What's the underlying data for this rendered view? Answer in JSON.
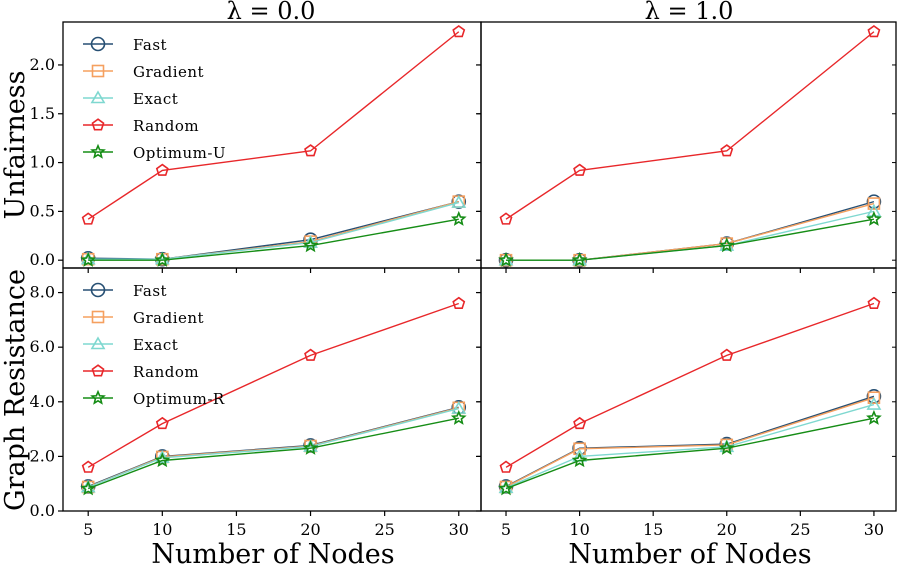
{
  "colors": {
    "Fast": "#264f73",
    "Gradient": "#f5a05f",
    "Exact": "#7fd8d0",
    "Random": "#e8272a",
    "Optimum": "#168d16"
  },
  "chart_data": [
    {
      "type": "line",
      "title": "λ = 0.0",
      "xlabel": "",
      "ylabel": "Unfairness",
      "x": [
        5,
        10,
        20,
        30
      ],
      "xlim": [
        3.3,
        31.5
      ],
      "ylim": [
        -0.08,
        2.44
      ],
      "xticks": [
        5,
        10,
        15,
        20,
        25,
        30
      ],
      "yticks": [
        0.0,
        0.5,
        1.0,
        1.5,
        2.0
      ],
      "ytick_labels": [
        "0.0",
        "0.5",
        "1.0",
        "1.5",
        "2.0"
      ],
      "legend": [
        "Fast",
        "Gradient",
        "Exact",
        "Random",
        "Optimum-U"
      ],
      "series": [
        {
          "name": "Fast",
          "marker": "circle",
          "values": [
            0.02,
            0.01,
            0.21,
            0.6
          ]
        },
        {
          "name": "Gradient",
          "marker": "square",
          "values": [
            0.01,
            0.01,
            0.19,
            0.6
          ]
        },
        {
          "name": "Exact",
          "marker": "triangle",
          "values": [
            0.01,
            0.01,
            0.18,
            0.59
          ]
        },
        {
          "name": "Random",
          "marker": "pentagon",
          "values": [
            0.42,
            0.92,
            1.12,
            2.34
          ]
        },
        {
          "name": "Optimum-U",
          "marker": "star",
          "values": [
            0.0,
            0.0,
            0.15,
            0.42
          ]
        }
      ]
    },
    {
      "type": "line",
      "title": "λ = 1.0",
      "xlabel": "",
      "ylabel": "",
      "x": [
        5,
        10,
        20,
        30
      ],
      "xlim": [
        3.3,
        31.5
      ],
      "ylim": [
        -0.08,
        2.44
      ],
      "xticks": [
        5,
        10,
        15,
        20,
        25,
        30
      ],
      "yticks": [
        0.0,
        0.5,
        1.0,
        1.5,
        2.0
      ],
      "legend": [],
      "series": [
        {
          "name": "Fast",
          "marker": "circle",
          "values": [
            0.0,
            0.0,
            0.17,
            0.6
          ]
        },
        {
          "name": "Gradient",
          "marker": "square",
          "values": [
            0.0,
            0.0,
            0.17,
            0.58
          ]
        },
        {
          "name": "Exact",
          "marker": "triangle",
          "values": [
            0.0,
            0.0,
            0.15,
            0.5
          ]
        },
        {
          "name": "Random",
          "marker": "pentagon",
          "values": [
            0.42,
            0.92,
            1.12,
            2.34
          ]
        },
        {
          "name": "Optimum-U",
          "marker": "star",
          "values": [
            0.0,
            0.0,
            0.15,
            0.42
          ]
        }
      ]
    },
    {
      "type": "line",
      "title": "",
      "xlabel": "Number of Nodes",
      "ylabel": "Graph Resistance",
      "x": [
        5,
        10,
        20,
        30
      ],
      "xlim": [
        3.3,
        31.5
      ],
      "ylim": [
        0.0,
        8.9
      ],
      "xticks": [
        5,
        10,
        15,
        20,
        25,
        30
      ],
      "xtick_labels": [
        "5",
        "10",
        "15",
        "20",
        "25",
        "30"
      ],
      "yticks": [
        0.0,
        2.0,
        4.0,
        6.0,
        8.0
      ],
      "ytick_labels": [
        "0.0",
        "2.0",
        "4.0",
        "6.0",
        "8.0"
      ],
      "legend": [
        "Fast",
        "Gradient",
        "Exact",
        "Random",
        "Optimum-R"
      ],
      "series": [
        {
          "name": "Fast",
          "marker": "circle",
          "values": [
            0.9,
            2.0,
            2.4,
            3.8
          ]
        },
        {
          "name": "Gradient",
          "marker": "square",
          "values": [
            0.88,
            1.98,
            2.38,
            3.78
          ]
        },
        {
          "name": "Exact",
          "marker": "triangle",
          "values": [
            0.87,
            1.95,
            2.36,
            3.75
          ]
        },
        {
          "name": "Random",
          "marker": "pentagon",
          "values": [
            1.6,
            3.2,
            5.7,
            7.6
          ]
        },
        {
          "name": "Optimum-R",
          "marker": "star",
          "values": [
            0.82,
            1.85,
            2.3,
            3.4
          ]
        }
      ]
    },
    {
      "type": "line",
      "title": "",
      "xlabel": "Number of Nodes",
      "ylabel": "",
      "x": [
        5,
        10,
        20,
        30
      ],
      "xlim": [
        3.3,
        31.5
      ],
      "ylim": [
        0.0,
        8.9
      ],
      "xticks": [
        5,
        10,
        15,
        20,
        25,
        30
      ],
      "xtick_labels": [
        "5",
        "10",
        "15",
        "20",
        "25",
        "30"
      ],
      "yticks": [
        0.0,
        2.0,
        4.0,
        6.0,
        8.0
      ],
      "legend": [],
      "series": [
        {
          "name": "Fast",
          "marker": "circle",
          "values": [
            0.9,
            2.3,
            2.45,
            4.2
          ]
        },
        {
          "name": "Gradient",
          "marker": "square",
          "values": [
            0.88,
            2.28,
            2.42,
            4.15
          ]
        },
        {
          "name": "Exact",
          "marker": "triangle",
          "values": [
            0.85,
            2.0,
            2.35,
            3.9
          ]
        },
        {
          "name": "Random",
          "marker": "pentagon",
          "values": [
            1.6,
            3.2,
            5.7,
            7.6
          ]
        },
        {
          "name": "Optimum-R",
          "marker": "star",
          "values": [
            0.82,
            1.85,
            2.3,
            3.4
          ]
        }
      ]
    }
  ]
}
